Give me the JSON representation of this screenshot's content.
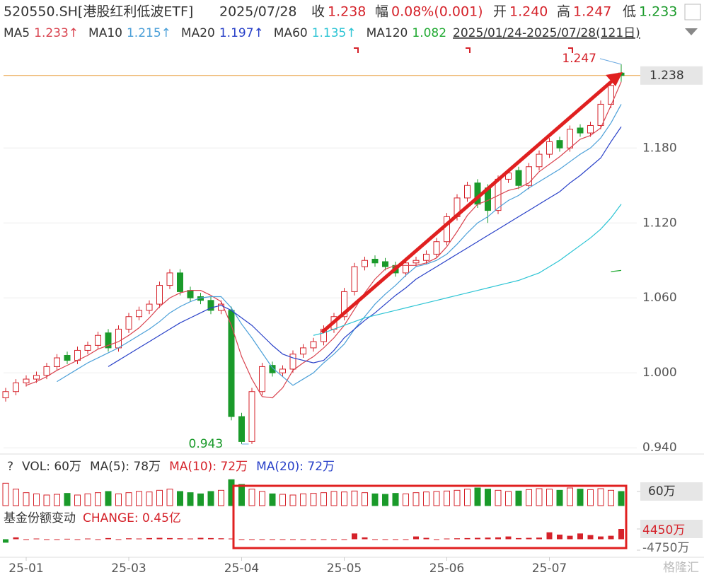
{
  "chart_data": {
    "type": "candlestick",
    "quote": {
      "code": "520550.SH[港股红利低波ETF]",
      "date": "2025/07/28",
      "items": [
        {
          "label": "收",
          "value": "1.238"
        },
        {
          "label": "幅",
          "value": "0.08%(0.001)"
        },
        {
          "label": "开",
          "value": "1.240"
        },
        {
          "label": "高",
          "value": "1.247"
        },
        {
          "label": "低",
          "value": "1.233"
        }
      ]
    },
    "range_label": "2025/01/24-2025/07/28(121日)",
    "open": [
      0.98,
      0.985,
      0.992,
      0.995,
      0.998,
      1.005,
      1.014,
      1.01,
      1.018,
      1.022,
      1.032,
      1.02,
      1.035,
      1.045,
      1.05,
      1.055,
      1.07,
      1.08,
      1.066,
      1.061,
      1.058,
      1.05,
      1.05,
      0.965,
      0.945,
      0.985,
      1.006,
      1.0,
      1.003,
      1.015,
      1.02,
      1.025,
      1.035,
      1.045,
      1.065,
      1.085,
      1.091,
      1.089,
      1.086,
      1.08,
      1.088,
      1.09,
      1.095,
      1.105,
      1.125,
      1.14,
      1.152,
      1.148,
      1.13,
      1.155,
      1.162,
      1.15,
      1.165,
      1.175,
      1.186,
      1.18,
      1.196,
      1.192,
      1.198,
      1.215,
      1.24
    ],
    "close": [
      0.985,
      0.992,
      0.995,
      0.998,
      1.005,
      1.012,
      1.01,
      1.018,
      1.022,
      1.03,
      1.02,
      1.035,
      1.045,
      1.05,
      1.055,
      1.07,
      1.08,
      1.065,
      1.06,
      1.058,
      1.05,
      1.055,
      0.965,
      0.945,
      0.985,
      1.005,
      1.0,
      1.003,
      1.015,
      1.02,
      1.025,
      1.035,
      1.045,
      1.065,
      1.085,
      1.09,
      1.088,
      1.085,
      1.08,
      1.088,
      1.09,
      1.095,
      1.105,
      1.125,
      1.14,
      1.15,
      1.135,
      1.13,
      1.155,
      1.16,
      1.15,
      1.165,
      1.175,
      1.185,
      1.18,
      1.195,
      1.192,
      1.198,
      1.215,
      1.23,
      1.238
    ],
    "high": [
      0.988,
      0.995,
      0.998,
      1.001,
      1.008,
      1.015,
      1.017,
      1.021,
      1.025,
      1.033,
      1.035,
      1.038,
      1.048,
      1.053,
      1.058,
      1.073,
      1.083,
      1.083,
      1.069,
      1.064,
      1.061,
      1.058,
      1.053,
      0.968,
      0.988,
      1.008,
      1.009,
      1.006,
      1.018,
      1.023,
      1.028,
      1.038,
      1.048,
      1.068,
      1.088,
      1.093,
      1.094,
      1.092,
      1.089,
      1.091,
      1.093,
      1.098,
      1.108,
      1.128,
      1.143,
      1.153,
      1.155,
      1.151,
      1.158,
      1.163,
      1.165,
      1.168,
      1.178,
      1.188,
      1.189,
      1.198,
      1.199,
      1.201,
      1.218,
      1.233,
      1.247
    ],
    "low": [
      0.977,
      0.982,
      0.989,
      0.992,
      0.995,
      1.002,
      1.007,
      1.007,
      1.015,
      1.019,
      1.017,
      1.017,
      1.032,
      1.042,
      1.047,
      1.052,
      1.067,
      1.062,
      1.057,
      1.055,
      1.047,
      1.047,
      0.962,
      0.943,
      0.943,
      0.982,
      0.997,
      0.997,
      1.0,
      1.012,
      1.017,
      1.022,
      1.032,
      1.042,
      1.062,
      1.082,
      1.085,
      1.082,
      1.077,
      1.077,
      1.085,
      1.087,
      1.092,
      1.102,
      1.122,
      1.137,
      1.132,
      1.12,
      1.127,
      1.152,
      1.147,
      1.147,
      1.162,
      1.172,
      1.177,
      1.177,
      1.189,
      1.189,
      1.195,
      1.212,
      1.233
    ],
    "series": [
      {
        "name": "MA5",
        "last_label": "1.233↑",
        "color": "#d9434f",
        "values": [
          null,
          null,
          0.99,
          0.993,
          0.997,
          1.002,
          1.006,
          1.01,
          1.014,
          1.019,
          1.022,
          1.025,
          1.03,
          1.036,
          1.044,
          1.053,
          1.06,
          1.064,
          1.066,
          1.066,
          1.062,
          1.057,
          1.038,
          1.013,
          0.995,
          0.981,
          0.98,
          0.988,
          1.002,
          1.008,
          1.013,
          1.02,
          1.028,
          1.038,
          1.051,
          1.064,
          1.075,
          1.083,
          1.086,
          1.086,
          1.086,
          1.088,
          1.092,
          1.101,
          1.113,
          1.126,
          1.135,
          1.138,
          1.142,
          1.146,
          1.148,
          1.152,
          1.161,
          1.167,
          1.173,
          1.18,
          1.187,
          1.19,
          1.196,
          1.214,
          1.233
        ]
      },
      {
        "name": "MA10",
        "last_label": "1.215↑",
        "color": "#4a9fd8",
        "values": [
          null,
          null,
          null,
          null,
          null,
          0.993,
          0.998,
          1.003,
          1.008,
          1.012,
          1.016,
          1.02,
          1.025,
          1.03,
          1.035,
          1.041,
          1.048,
          1.053,
          1.057,
          1.06,
          1.061,
          1.061,
          1.052,
          1.039,
          1.028,
          1.016,
          1.004,
          0.997,
          0.99,
          0.995,
          1.0,
          1.008,
          1.015,
          1.023,
          1.035,
          1.045,
          1.055,
          1.063,
          1.07,
          1.078,
          1.085,
          1.087,
          1.09,
          1.095,
          1.103,
          1.112,
          1.12,
          1.125,
          1.132,
          1.138,
          1.142,
          1.148,
          1.153,
          1.158,
          1.163,
          1.169,
          1.175,
          1.18,
          1.188,
          1.2,
          1.215
        ]
      },
      {
        "name": "MA20",
        "last_label": "1.197↑",
        "color": "#2840c8",
        "values": [
          null,
          null,
          null,
          null,
          null,
          null,
          null,
          null,
          null,
          null,
          1.005,
          1.01,
          1.015,
          1.02,
          1.025,
          1.03,
          1.035,
          1.04,
          1.044,
          1.048,
          1.052,
          1.054,
          1.05,
          1.044,
          1.038,
          1.03,
          1.022,
          1.015,
          1.012,
          1.01,
          1.008,
          1.01,
          1.018,
          1.028,
          1.035,
          1.042,
          1.048,
          1.055,
          1.062,
          1.068,
          1.075,
          1.08,
          1.085,
          1.09,
          1.095,
          1.1,
          1.105,
          1.11,
          1.115,
          1.12,
          1.125,
          1.13,
          1.135,
          1.14,
          1.145,
          1.152,
          1.158,
          1.165,
          1.172,
          1.185,
          1.197
        ]
      },
      {
        "name": "MA60",
        "last_label": "1.135↑",
        "color": "#2cc4d4",
        "values": [
          null,
          null,
          null,
          null,
          null,
          null,
          null,
          null,
          null,
          null,
          null,
          null,
          null,
          null,
          null,
          null,
          null,
          null,
          null,
          null,
          null,
          null,
          null,
          null,
          null,
          null,
          null,
          null,
          null,
          null,
          1.03,
          1.032,
          1.035,
          1.038,
          1.041,
          1.044,
          1.046,
          1.048,
          1.05,
          1.052,
          1.054,
          1.056,
          1.058,
          1.06,
          1.062,
          1.064,
          1.066,
          1.068,
          1.07,
          1.072,
          1.074,
          1.077,
          1.08,
          1.085,
          1.09,
          1.096,
          1.102,
          1.108,
          1.115,
          1.124,
          1.135
        ]
      },
      {
        "name": "MA120",
        "last_label": "1.082",
        "color": "#22aa33",
        "values": [
          null,
          null,
          null,
          null,
          null,
          null,
          null,
          null,
          null,
          null,
          null,
          null,
          null,
          null,
          null,
          null,
          null,
          null,
          null,
          null,
          null,
          null,
          null,
          null,
          null,
          null,
          null,
          null,
          null,
          null,
          null,
          null,
          null,
          null,
          null,
          null,
          null,
          null,
          null,
          null,
          null,
          null,
          null,
          null,
          null,
          null,
          null,
          null,
          null,
          null,
          null,
          null,
          null,
          null,
          null,
          null,
          null,
          null,
          null,
          1.081,
          1.082
        ]
      }
    ],
    "ylim": [
      0.939,
      1.256
    ],
    "yticks": [
      {
        "value": 1.18,
        "label": "1.180"
      },
      {
        "value": 1.12,
        "label": "1.120"
      },
      {
        "value": 1.06,
        "label": "1.060"
      },
      {
        "value": 1.0,
        "label": "1.000"
      },
      {
        "value": 0.94,
        "label": "0.940"
      }
    ],
    "last_price": {
      "value": 1.238,
      "label": "1.238"
    },
    "annotations": [
      {
        "label": "1.247",
        "value": 1.247,
        "index": 60
      },
      {
        "label": "0.943",
        "value": 0.943,
        "index": 23
      }
    ],
    "xticks": [
      {
        "value": 2,
        "label": "25-01"
      },
      {
        "value": 12,
        "label": "25-03"
      },
      {
        "value": 23,
        "label": "25-04"
      },
      {
        "value": 33,
        "label": "25-05"
      },
      {
        "value": 43,
        "label": "25-06"
      },
      {
        "value": 53,
        "label": "25-07"
      }
    ],
    "volume": {
      "legend": [
        {
          "text": "?",
          "color": "#333"
        },
        {
          "text": "VOL: 60万",
          "color": "#333"
        },
        {
          "text": "MA(5): 78万",
          "color": "#333"
        },
        {
          "text": "MA(10): 72万",
          "color": "#d5222a"
        },
        {
          "text": "MA(20): 72万",
          "color": "#2840c8"
        }
      ],
      "values": [
        95,
        70,
        55,
        50,
        45,
        48,
        52,
        45,
        50,
        55,
        60,
        50,
        55,
        60,
        58,
        65,
        70,
        60,
        55,
        50,
        60,
        65,
        110,
        90,
        70,
        60,
        50,
        48,
        45,
        50,
        52,
        55,
        60,
        58,
        62,
        55,
        50,
        48,
        52,
        50,
        55,
        58,
        60,
        62,
        65,
        70,
        75,
        70,
        65,
        60,
        62,
        68,
        72,
        70,
        65,
        75,
        70,
        68,
        72,
        65,
        60
      ],
      "ylim": [
        0,
        120
      ],
      "yticks": [
        {
          "value": 60,
          "label": "60万"
        }
      ]
    },
    "change": {
      "title": "基金份额变动",
      "label": "CHANGE: 0.45亿",
      "values": [
        -1500,
        800,
        0,
        300,
        0,
        0,
        200,
        0,
        300,
        0,
        500,
        0,
        400,
        300,
        500,
        600,
        500,
        400,
        300,
        600,
        500,
        400,
        300,
        0,
        0,
        0,
        0,
        0,
        0,
        0,
        0,
        0,
        0,
        0,
        2500,
        800,
        0,
        0,
        0,
        0,
        1200,
        600,
        0,
        300,
        400,
        500,
        600,
        700,
        800,
        1200,
        500,
        600,
        700,
        3000,
        2000,
        1500,
        2500,
        1800,
        1200,
        1500,
        4450
      ],
      "ylim": [
        -4750,
        4450
      ],
      "yticks": [
        {
          "value": 4450,
          "label": "4450万"
        },
        {
          "value": -4750,
          "label": "-4750万"
        }
      ]
    },
    "watermark": "格隆汇"
  }
}
